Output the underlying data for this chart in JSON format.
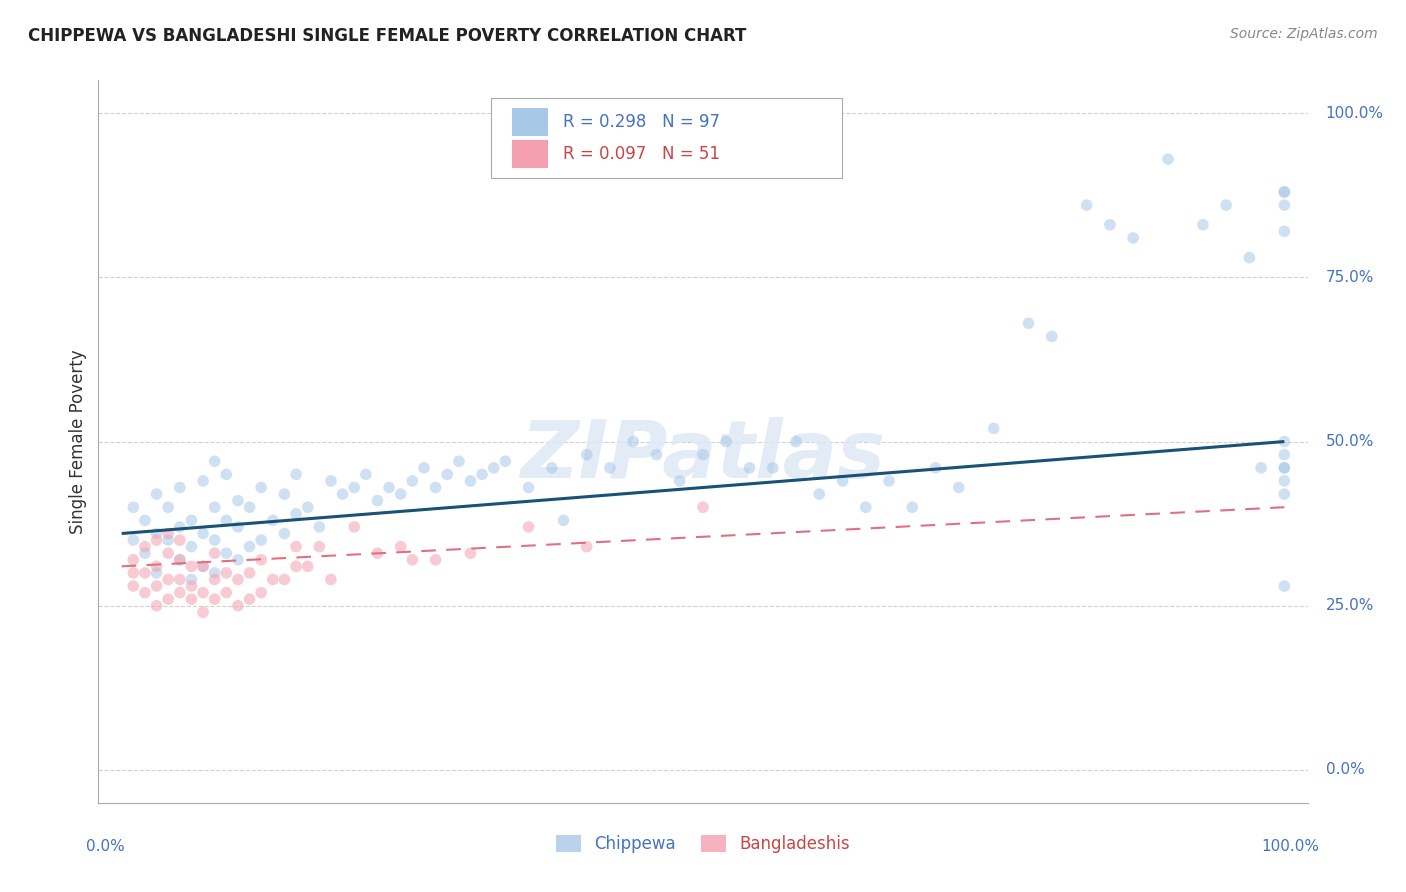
{
  "title": "CHIPPEWA VS BANGLADESHI SINGLE FEMALE POVERTY CORRELATION CHART",
  "source": "Source: ZipAtlas.com",
  "ylabel": "Single Female Poverty",
  "watermark": "ZIPatlas",
  "chippewa_color": "#a8c8e8",
  "bangladeshi_color": "#f4a0b0",
  "chippewa_line_color": "#1a5276",
  "bangladeshi_line_color": "#e07080",
  "grid_color": "#cccccc",
  "title_color": "#222222",
  "tick_color": "#4472c4",
  "chippewa_R": 0.298,
  "chippewa_N": 97,
  "bangladeshi_R": 0.097,
  "bangladeshi_N": 51,
  "marker_size": 70,
  "marker_alpha": 0.55,
  "chippewa_x": [
    1,
    1,
    2,
    2,
    3,
    3,
    3,
    4,
    4,
    5,
    5,
    5,
    6,
    6,
    6,
    7,
    7,
    7,
    8,
    8,
    8,
    8,
    9,
    9,
    9,
    10,
    10,
    10,
    11,
    11,
    12,
    12,
    13,
    14,
    14,
    15,
    15,
    16,
    17,
    18,
    19,
    20,
    21,
    22,
    23,
    24,
    25,
    26,
    27,
    28,
    29,
    30,
    31,
    32,
    33,
    35,
    37,
    38,
    40,
    42,
    44,
    46,
    48,
    50,
    52,
    54,
    56,
    58,
    60,
    62,
    64,
    66,
    68,
    70,
    72,
    75,
    78,
    80,
    83,
    85,
    87,
    90,
    93,
    95,
    97,
    98,
    100,
    100,
    100,
    100,
    100,
    100,
    100,
    100,
    100,
    100,
    100
  ],
  "chippewa_y": [
    35,
    40,
    33,
    38,
    30,
    36,
    42,
    35,
    40,
    32,
    37,
    43,
    29,
    34,
    38,
    31,
    36,
    44,
    30,
    35,
    40,
    47,
    33,
    38,
    45,
    32,
    37,
    41,
    34,
    40,
    35,
    43,
    38,
    36,
    42,
    39,
    45,
    40,
    37,
    44,
    42,
    43,
    45,
    41,
    43,
    42,
    44,
    46,
    43,
    45,
    47,
    44,
    45,
    46,
    47,
    43,
    46,
    38,
    48,
    46,
    50,
    48,
    44,
    48,
    50,
    46,
    46,
    50,
    42,
    44,
    40,
    44,
    40,
    46,
    43,
    52,
    68,
    66,
    86,
    83,
    81,
    93,
    83,
    86,
    78,
    46,
    28,
    46,
    50,
    42,
    46,
    44,
    82,
    86,
    88,
    88,
    48
  ],
  "bangladeshi_x": [
    1,
    1,
    1,
    2,
    2,
    2,
    3,
    3,
    3,
    3,
    4,
    4,
    4,
    4,
    5,
    5,
    5,
    5,
    6,
    6,
    6,
    7,
    7,
    7,
    8,
    8,
    8,
    9,
    9,
    10,
    10,
    11,
    11,
    12,
    12,
    13,
    14,
    15,
    15,
    16,
    17,
    18,
    20,
    22,
    24,
    25,
    27,
    30,
    35,
    40,
    50
  ],
  "bangladeshi_y": [
    28,
    30,
    32,
    27,
    30,
    34,
    25,
    28,
    31,
    35,
    26,
    29,
    33,
    36,
    27,
    29,
    32,
    35,
    26,
    28,
    31,
    24,
    27,
    31,
    26,
    29,
    33,
    27,
    30,
    25,
    29,
    26,
    30,
    27,
    32,
    29,
    29,
    31,
    34,
    31,
    34,
    29,
    37,
    33,
    34,
    32,
    32,
    33,
    37,
    34,
    40
  ],
  "chippewa_line_x": [
    0,
    100
  ],
  "chippewa_line_y": [
    36,
    50
  ],
  "bangladeshi_line_x": [
    0,
    100
  ],
  "bangladeshi_line_y": [
    31,
    40
  ],
  "xlim": [
    -2,
    102
  ],
  "ylim": [
    -5,
    105
  ],
  "yticks": [
    0,
    25,
    50,
    75,
    100
  ],
  "ytick_labels": [
    "0.0%",
    "25.0%",
    "50.0%",
    "75.0%",
    "100.0%"
  ]
}
